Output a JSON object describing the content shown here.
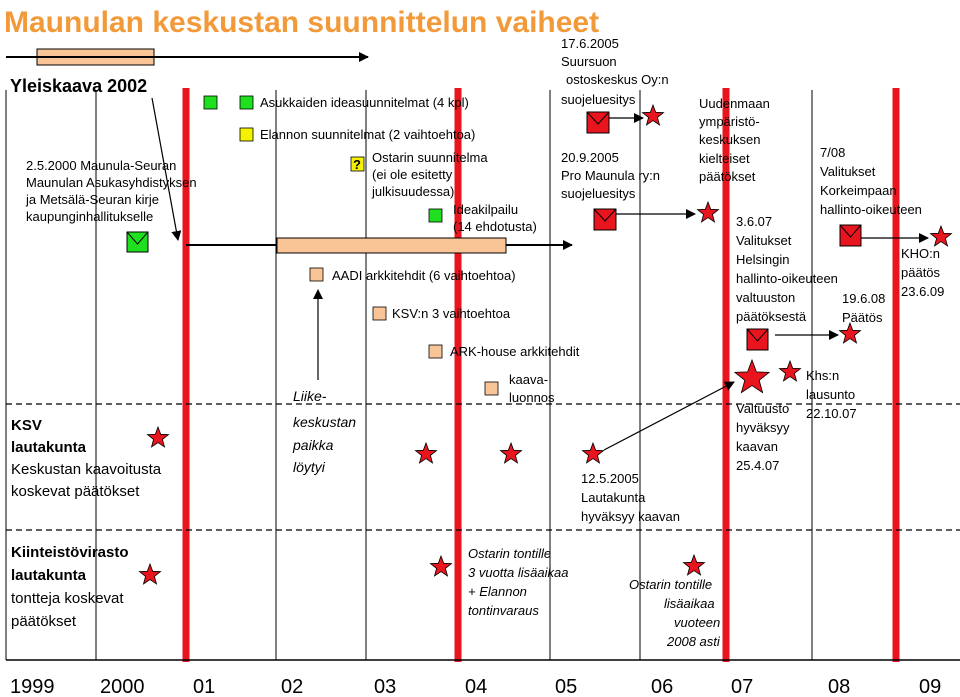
{
  "title": "Maunulan keskustan suunnittelun vaiheet",
  "colors": {
    "title": "#f29a3a",
    "red": "#e8141e",
    "green": "#1fe01f",
    "yellow": "#f5f200",
    "orange": "#f9c596"
  },
  "years": [
    "1999",
    "2000",
    "01",
    "02",
    "03",
    "04",
    "05",
    "06",
    "07",
    "08",
    "09"
  ],
  "yleiskaava": "Yleiskaava 2002",
  "sections": {
    "ksv": [
      "KSV",
      "lautakunta",
      "Keskustan kaavoitusta",
      "koskevat päätökset"
    ],
    "kv": [
      "Kiinteistövirasto",
      "lautakunta",
      "tontteja koskevat",
      "päätökset"
    ]
  },
  "labels": {
    "asukkaiden": "Asukkaiden ideasuunnitelmat (4 kpl)",
    "elannon": "Elannon suunnitelmat (2 vaihtoehtoa)",
    "ostarin_s": [
      "Ostarin suunnitelma",
      "(ei ole esitetty",
      "julkisuudessa)"
    ],
    "ideakilpailu": [
      "Ideakilpailu",
      "(14 ehdotusta)"
    ],
    "seura": [
      "2.5.2000 Maunula-Seuran",
      "Maunulan Asukasyhdistyksen",
      "ja Metsälä-Seuran kirje",
      "kaupunginhallitukselle"
    ],
    "aadi": "AADI arkkitehdit (6 vaihtoehtoa)",
    "ksv3": "KSV:n 3 vaihtoehtoa",
    "arkhouse": "ARK-house arkkitehdit",
    "kaavaluonnos": [
      "kaava-",
      "luonnos"
    ],
    "liike": [
      "Liike-",
      "keskustan",
      "paikka",
      "löytyi"
    ],
    "suursuo": [
      "17.6.2005",
      "Suursuon",
      "ostoskeskus Oy:n",
      "suojeluesitys"
    ],
    "pro": [
      "20.9.2005",
      "Pro Maunula ry:n",
      "suojeluesitys"
    ],
    "uudenmaan": [
      "Uudenmaan",
      "ympäristö-",
      "keskuksen",
      "kielteiset",
      "päätökset"
    ],
    "valitukset": [
      "3.6.07",
      "Valitukset",
      "Helsingin",
      "hallinto-oikeuteen",
      "valtuuston",
      "päätöksestä"
    ],
    "korkeimpaan": [
      "7/08",
      "Valitukset",
      "Korkeimpaan",
      "hallinto-oikeuteen"
    ],
    "kho": [
      "KHO:n",
      "päätös",
      "23.6.09"
    ],
    "paatos": [
      "19.6.08",
      "Päätös"
    ],
    "khs": [
      "Khs:n",
      "lausunto",
      "22.10.07"
    ],
    "valtuusto": [
      "Valtuusto",
      "hyväksyy",
      "kaavan",
      "25.4.07"
    ],
    "lautakunta": [
      "12.5.2005",
      "Lautakunta",
      "hyväksyy kaavan"
    ],
    "ostarin_t": [
      "Ostarin tontille",
      "3 vuotta lisäaikaa",
      "+ Elannon",
      "tontinvaraus"
    ],
    "ostarin_l": [
      "Ostarin tontille",
      "lisäaikaa",
      "vuoteen",
      "2008 asti"
    ]
  }
}
